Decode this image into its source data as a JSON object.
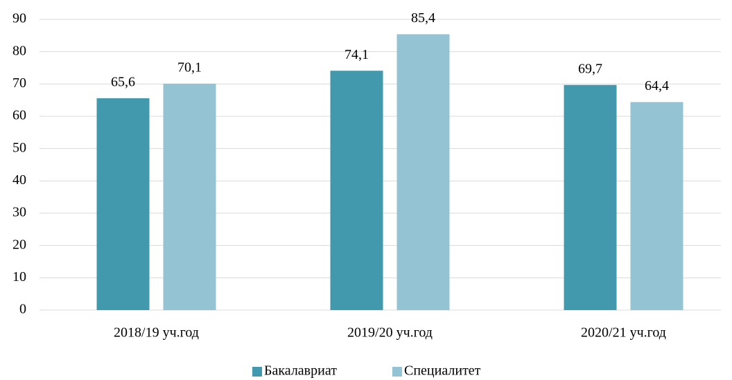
{
  "chart_data": {
    "type": "bar",
    "categories": [
      "2018/19 уч.год",
      "2019/20 уч.год",
      "2020/21 уч.год"
    ],
    "series": [
      {
        "name": "Бакалавриат",
        "color": "#4299ae",
        "values": [
          65.6,
          74.1,
          69.7
        ],
        "value_labels": [
          "65,6",
          "74,1",
          "69,7"
        ]
      },
      {
        "name": "Специалитет",
        "color": "#94c3d4",
        "values": [
          70.1,
          85.4,
          64.4
        ],
        "value_labels": [
          "70,1",
          "85,4",
          "64,4"
        ]
      }
    ],
    "ylim": [
      0,
      90
    ],
    "yticks": [
      0,
      10,
      20,
      30,
      40,
      50,
      60,
      70,
      80,
      90
    ],
    "grid": true,
    "legend": "bottom"
  }
}
